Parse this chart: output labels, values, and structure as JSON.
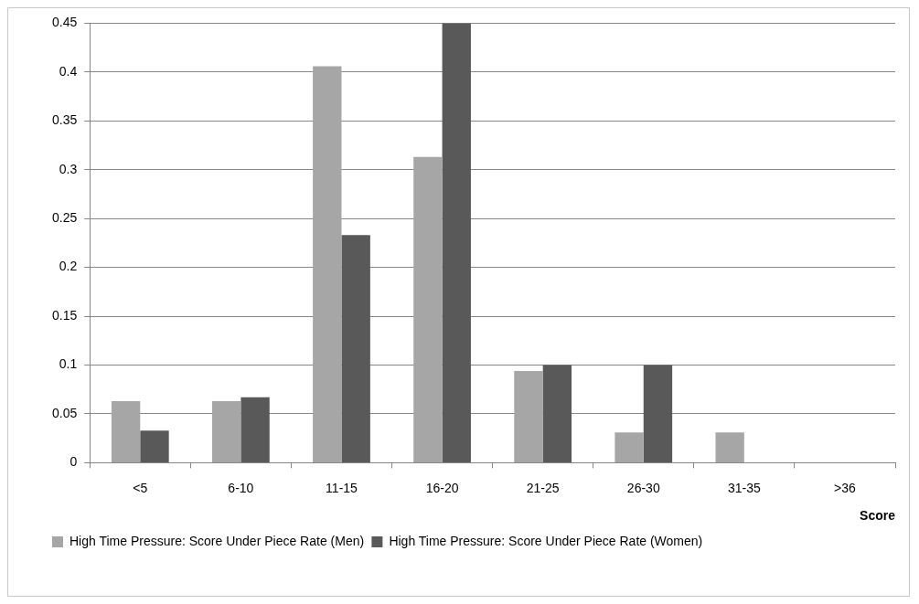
{
  "chart_data": {
    "type": "bar",
    "xlabel": "Score",
    "categories": [
      "<5",
      "6-10",
      "11-15",
      "16-20",
      "21-25",
      "26-30",
      "31-35",
      ">36"
    ],
    "series": [
      {
        "name": "High Time Pressure: Score Under Piece Rate (Men)",
        "color": "#a6a6a6",
        "values": [
          0.063,
          0.063,
          0.406,
          0.313,
          0.094,
          0.031,
          0.031,
          0
        ]
      },
      {
        "name": "High Time Pressure: Score Under Piece Rate (Women)",
        "color": "#595959",
        "values": [
          0.033,
          0.067,
          0.233,
          0.45,
          0.1,
          0.1,
          0,
          0
        ]
      }
    ],
    "ylim": [
      0,
      0.45
    ],
    "yticks": [
      0,
      0.05,
      0.1,
      0.15,
      0.2,
      0.25,
      0.3,
      0.35,
      0.4,
      0.45
    ],
    "grid": "y",
    "legend": "bottom"
  }
}
